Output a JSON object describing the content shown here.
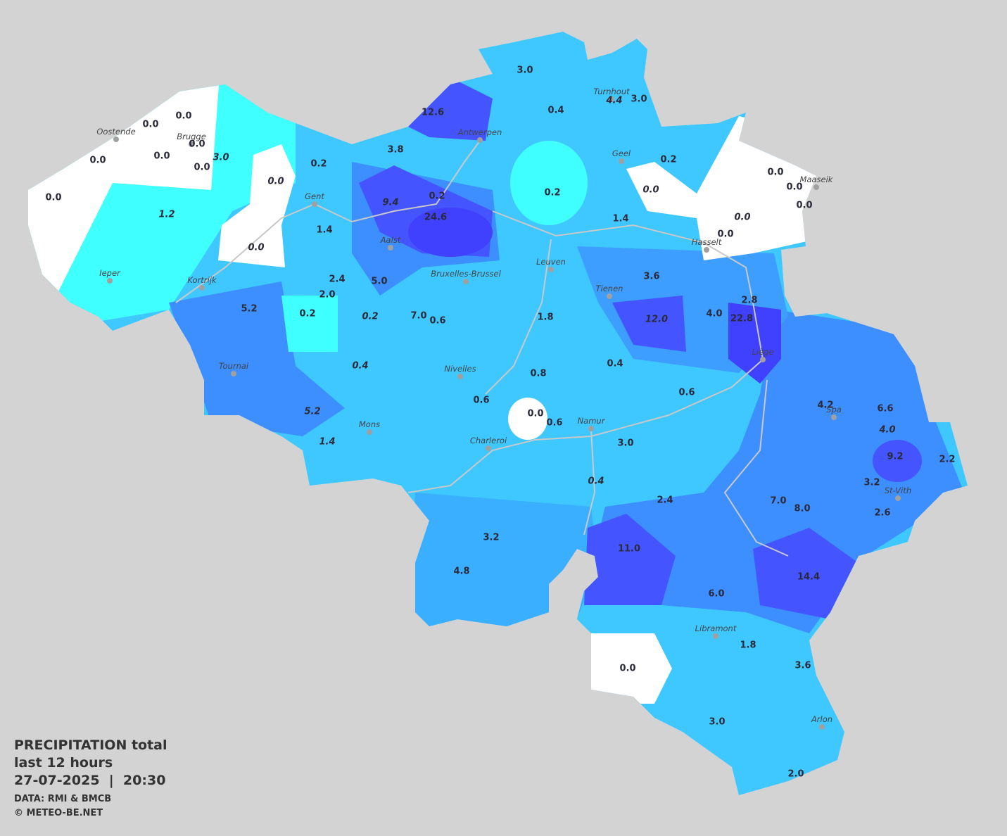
{
  "title": "PRECIPITATION total",
  "subtitle": "last 12 hours",
  "datetime": "27-07-2025  |  20:30",
  "source": "DATA: RMI & BMCB",
  "copyright": "© METEO-BE.NET",
  "cities": [
    "Oostende",
    "Brugge",
    "Gent",
    "Antwerpen",
    "Turnhout",
    "Geel",
    "Maaseik",
    "Hasselt",
    "Ieper",
    "Kortrijk",
    "Aalst",
    "Bruxelles-Brussel",
    "Leuven",
    "Tienen",
    "Liège",
    "Tournai",
    "Nivelles",
    "Mons",
    "Charleroi",
    "Namur",
    "Spa",
    "St-Vith",
    "Libramont",
    "Arlon"
  ],
  "readings": [
    {
      "label": "0.0",
      "italic": false
    },
    {
      "label": "0.0",
      "italic": false
    },
    {
      "label": "0.0",
      "italic": false
    },
    {
      "label": "0.0",
      "italic": false
    },
    {
      "label": "0.0",
      "italic": false
    },
    {
      "label": "0.0",
      "italic": false
    },
    {
      "label": "3.0",
      "italic": true
    },
    {
      "label": "0.0",
      "italic": false
    },
    {
      "label": "1.2",
      "italic": true
    },
    {
      "label": "0.0",
      "italic": true
    },
    {
      "label": "0.2",
      "italic": false
    },
    {
      "label": "0.0",
      "italic": true
    },
    {
      "label": "1.4",
      "italic": false
    },
    {
      "label": "3.8",
      "italic": false
    },
    {
      "label": "12.6",
      "italic": false
    },
    {
      "label": "3.0",
      "italic": false
    },
    {
      "label": "0.4",
      "italic": false
    },
    {
      "label": "4.4",
      "italic": true
    },
    {
      "label": "3.0",
      "italic": false
    },
    {
      "label": "0.2",
      "italic": false
    },
    {
      "label": "9.4",
      "italic": true
    },
    {
      "label": "24.6",
      "italic": false
    },
    {
      "label": "0.2",
      "italic": false
    },
    {
      "label": "0.2",
      "italic": false
    },
    {
      "label": "0.0",
      "italic": true
    },
    {
      "label": "0.0",
      "italic": false
    },
    {
      "label": "0.0",
      "italic": false
    },
    {
      "label": "0.0",
      "italic": false
    },
    {
      "label": "0.0",
      "italic": true
    },
    {
      "label": "0.0",
      "italic": false
    },
    {
      "label": "1.4",
      "italic": false
    },
    {
      "label": "2.4",
      "italic": false
    },
    {
      "label": "5.0",
      "italic": false
    },
    {
      "label": "2.0",
      "italic": false
    },
    {
      "label": "5.2",
      "italic": false
    },
    {
      "label": "0.2",
      "italic": false
    },
    {
      "label": "0.2",
      "italic": true
    },
    {
      "label": "7.0",
      "italic": false
    },
    {
      "label": "0.6",
      "italic": false
    },
    {
      "label": "1.8",
      "italic": false
    },
    {
      "label": "3.6",
      "italic": false
    },
    {
      "label": "12.0",
      "italic": true
    },
    {
      "label": "4.0",
      "italic": false
    },
    {
      "label": "2.8",
      "italic": false
    },
    {
      "label": "22.8",
      "italic": false
    },
    {
      "label": "0.4",
      "italic": true
    },
    {
      "label": "0.8",
      "italic": false
    },
    {
      "label": "0.4",
      "italic": false
    },
    {
      "label": "0.6",
      "italic": false
    },
    {
      "label": "0.6",
      "italic": false
    },
    {
      "label": "0.0",
      "italic": false
    },
    {
      "label": "0.6",
      "italic": false
    },
    {
      "label": "5.2",
      "italic": true
    },
    {
      "label": "1.4",
      "italic": true
    },
    {
      "label": "3.0",
      "italic": false
    },
    {
      "label": "4.2",
      "italic": false
    },
    {
      "label": "6.6",
      "italic": false
    },
    {
      "label": "4.0",
      "italic": true
    },
    {
      "label": "9.2",
      "italic": false
    },
    {
      "label": "2.2",
      "italic": false
    },
    {
      "label": "0.4",
      "italic": true
    },
    {
      "label": "2.4",
      "italic": false
    },
    {
      "label": "7.0",
      "italic": false
    },
    {
      "label": "8.0",
      "italic": false
    },
    {
      "label": "3.2",
      "italic": false
    },
    {
      "label": "2.6",
      "italic": false
    },
    {
      "label": "3.2",
      "italic": false
    },
    {
      "label": "11.0",
      "italic": false
    },
    {
      "label": "4.8",
      "italic": false
    },
    {
      "label": "14.4",
      "italic": false
    },
    {
      "label": "6.0",
      "italic": false
    },
    {
      "label": "1.8",
      "italic": false
    },
    {
      "label": "3.6",
      "italic": false
    },
    {
      "label": "0.0",
      "italic": false
    },
    {
      "label": "3.0",
      "italic": false
    },
    {
      "label": "2.0",
      "italic": false
    }
  ]
}
